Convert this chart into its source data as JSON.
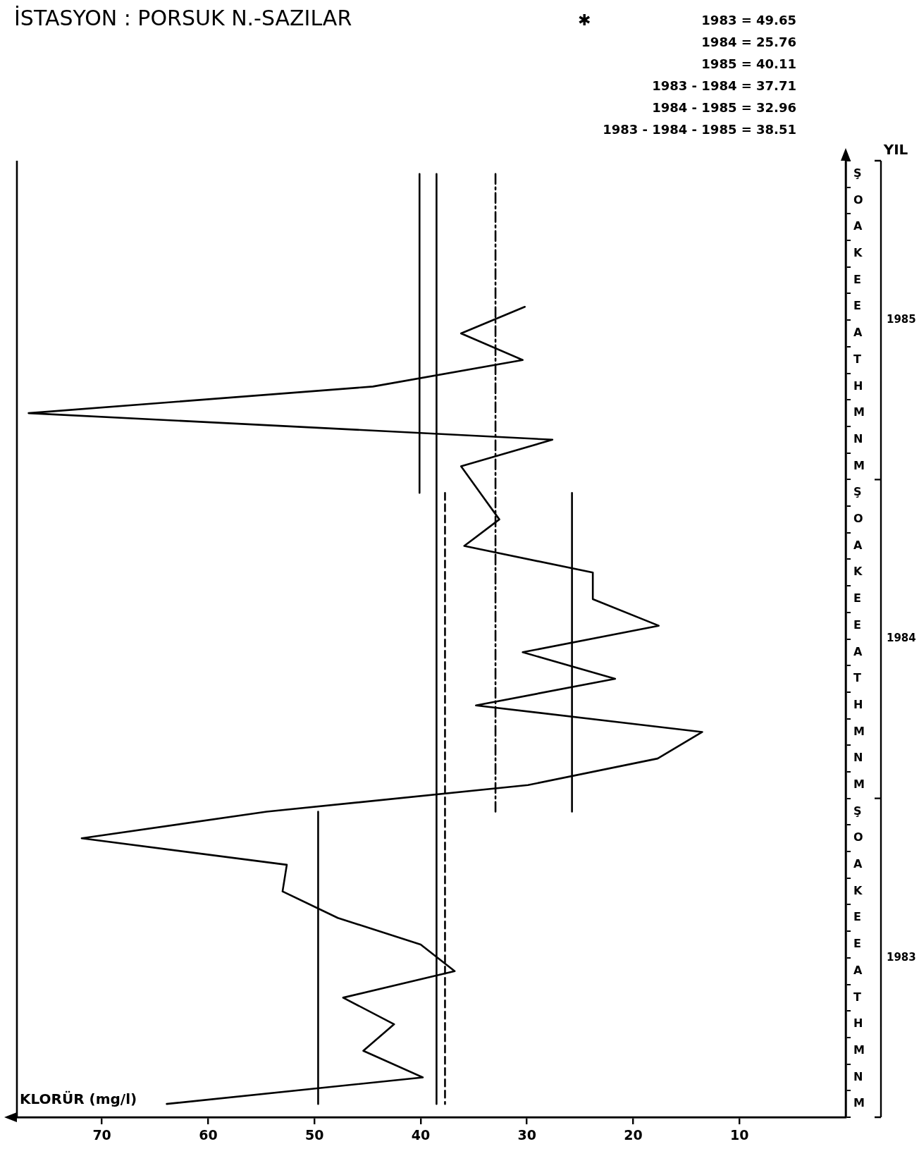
{
  "chart_data": {
    "type": "line",
    "orientation": "horizontal",
    "title": "İSTASYON : PORSUK N.-SAZILAR",
    "xlabel": "KLORÜR (mg/l)",
    "y2label": "YIL",
    "categories": [
      "Ş",
      "O",
      "A",
      "K",
      "E",
      "E",
      "A",
      "T",
      "H",
      "M",
      "N",
      "M",
      "Ş",
      "O",
      "A",
      "K",
      "E",
      "E",
      "A",
      "T",
      "H",
      "M",
      "N",
      "M",
      "Ş",
      "O",
      "A",
      "K",
      "E",
      "E",
      "A",
      "T",
      "H",
      "M",
      "N",
      "M"
    ],
    "y2lim": [
      1982.5,
      1985.5
    ],
    "y2ticks": [
      {
        "value": 1982.5,
        "label": null
      },
      1983,
      {
        "value": 1983.5,
        "label": null
      },
      1984,
      {
        "value": 1984.5,
        "label": null
      },
      1985,
      {
        "value": 1985.5,
        "label": null
      }
    ],
    "xlim": [
      78,
      0
    ],
    "xticks": [
      10,
      20,
      30,
      40,
      50,
      60,
      70
    ],
    "series": [
      {
        "color": "#000000",
        "values": [
          null,
          null,
          null,
          null,
          null,
          30.2,
          36.2,
          30.4,
          44.5,
          76.9,
          27.6,
          36.2,
          34.4,
          32.6,
          35.9,
          23.8,
          23.8,
          17.6,
          30.4,
          21.7,
          34.8,
          13.5,
          17.7,
          29.9,
          54.5,
          71.9,
          52.6,
          53.0,
          47.8,
          40.0,
          36.8,
          47.3,
          42.5,
          45.4,
          39.8,
          63.9
        ]
      },
      {
        "color": "#000000",
        "line_style": "solid",
        "values": [
          null,
          null,
          null,
          null,
          null,
          null,
          null,
          null,
          null,
          null,
          null,
          null,
          null,
          null,
          null,
          null,
          null,
          null,
          null,
          null,
          null,
          null,
          null,
          null,
          49.65,
          49.65,
          49.65,
          49.65,
          49.65,
          49.65,
          49.65,
          49.65,
          49.65,
          49.65,
          49.65,
          49.65
        ]
      },
      {
        "color": "#000000",
        "line_style": "solid",
        "values": [
          null,
          null,
          null,
          null,
          null,
          null,
          null,
          null,
          null,
          null,
          null,
          null,
          25.76,
          25.76,
          25.76,
          25.76,
          25.76,
          25.76,
          25.76,
          25.76,
          25.76,
          25.76,
          25.76,
          25.76,
          25.76,
          null,
          null,
          null,
          null,
          null,
          null,
          null,
          null,
          null,
          null,
          null
        ]
      },
      {
        "color": "#000000",
        "line_style": "solid",
        "values": [
          40.11,
          40.11,
          40.11,
          40.11,
          40.11,
          40.11,
          40.11,
          40.11,
          40.11,
          40.11,
          40.11,
          40.11,
          40.11,
          null,
          null,
          null,
          null,
          null,
          null,
          null,
          null,
          null,
          null,
          null,
          null,
          null,
          null,
          null,
          null,
          null,
          null,
          null,
          null,
          null,
          null,
          null
        ]
      },
      {
        "color": "#000000",
        "line_style": "dashed",
        "values": [
          null,
          null,
          null,
          null,
          null,
          null,
          null,
          null,
          null,
          null,
          null,
          null,
          37.71,
          37.71,
          37.71,
          37.71,
          37.71,
          37.71,
          37.71,
          37.71,
          37.71,
          37.71,
          37.71,
          37.71,
          37.71,
          37.71,
          37.71,
          37.71,
          37.71,
          37.71,
          37.71,
          37.71,
          37.71,
          37.71,
          37.71,
          37.71
        ]
      },
      {
        "color": "#000000",
        "line_style": "dashdot",
        "values": [
          32.96,
          32.96,
          32.96,
          32.96,
          32.96,
          32.96,
          32.96,
          32.96,
          32.96,
          32.96,
          32.96,
          32.96,
          32.96,
          32.96,
          32.96,
          32.96,
          32.96,
          32.96,
          32.96,
          32.96,
          32.96,
          32.96,
          32.96,
          32.96,
          32.96,
          null,
          null,
          null,
          null,
          null,
          null,
          null,
          null,
          null,
          null,
          null
        ]
      },
      {
        "color": "#000000",
        "line_style": "solid",
        "values": [
          38.51,
          38.51,
          38.51,
          38.51,
          38.51,
          38.51,
          38.51,
          38.51,
          38.51,
          38.51,
          38.51,
          38.51,
          38.51,
          38.51,
          38.51,
          38.51,
          38.51,
          38.51,
          38.51,
          38.51,
          38.51,
          38.51,
          38.51,
          38.51,
          38.51,
          38.51,
          38.51,
          38.51,
          38.51,
          38.51,
          38.51,
          38.51,
          38.51,
          38.51,
          38.51,
          38.51
        ]
      }
    ],
    "annotations": [
      "✱",
      "1983 = 49.65",
      "1984 = 25.76",
      "1985 = 40.11",
      "1983 - 1984 = 37.71",
      "1984 - 1985 = 32.96",
      "1983 - 1984 - 1985 = 38.51"
    ],
    "grid": false,
    "legend": false,
    "marker": "none",
    "line_style": "solid"
  }
}
